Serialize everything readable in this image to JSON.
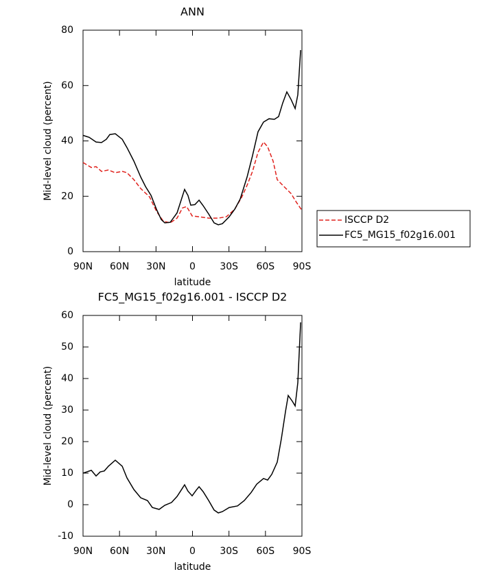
{
  "chart_data": [
    {
      "type": "line",
      "title": "ANN",
      "xlabel": "latitude",
      "ylabel": "Mid-level cloud (percent)",
      "xlim": [
        90,
        -90
      ],
      "ylim": [
        0,
        80
      ],
      "xticks": [
        {
          "value": 90,
          "label": "90N"
        },
        {
          "value": 60,
          "label": "60N"
        },
        {
          "value": 30,
          "label": "30N"
        },
        0,
        {
          "value": -30,
          "label": "30S"
        },
        {
          "value": -60,
          "label": "60S"
        },
        {
          "value": -90,
          "label": "90S"
        }
      ],
      "yticks": [
        0,
        20,
        40,
        60,
        80
      ],
      "legend": "right",
      "series": [
        {
          "name": "ISCCP D2",
          "color": "#e0201b",
          "dash": true,
          "x": [
            90,
            83.2,
            79.3,
            74.8,
            69.1,
            63.5,
            57.8,
            53.9,
            48.2,
            42.6,
            35.3,
            29.6,
            24,
            18.3,
            12.7,
            8.2,
            4.8,
            0.3,
            -5.4,
            -13.3,
            -21.2,
            -27.9,
            -34.7,
            -40.4,
            -44.9,
            -49.4,
            -53.9,
            -58.4,
            -61.8,
            -66.3,
            -69.7,
            -75.3,
            -81,
            -85.5,
            -90
          ],
          "values": [
            32.2,
            30.4,
            30.7,
            29,
            29.5,
            28.5,
            29,
            28.5,
            26,
            22.8,
            19.8,
            14.6,
            11,
            10.4,
            12.1,
            15.8,
            16.3,
            12.9,
            12.6,
            12.1,
            12.1,
            12.6,
            15.3,
            19.6,
            24,
            29,
            35.9,
            39.6,
            37.9,
            32.7,
            26,
            23.5,
            21,
            17.8,
            14.9
          ]
        },
        {
          "name": "FC5_MG15_f02g16.001",
          "color": "#000000",
          "dash": false,
          "x": [
            90,
            84.9,
            79.3,
            74.8,
            70.8,
            68,
            63.5,
            57.8,
            53.9,
            48.2,
            42.6,
            38.6,
            34.1,
            29.6,
            25.7,
            22.8,
            18.3,
            12.7,
            9.3,
            6.5,
            3.7,
            1.4,
            -2,
            -5.4,
            -8.8,
            -13.3,
            -17.8,
            -21.2,
            -24.6,
            -30.2,
            -34.7,
            -39.2,
            -44.9,
            -49.4,
            -53.9,
            -58.4,
            -62.9,
            -67.4,
            -70.8,
            -74.2,
            -77.6,
            -81,
            -84.4,
            -86.6,
            -88.9
          ],
          "values": [
            42,
            41.3,
            39.6,
            39.4,
            40.6,
            42.3,
            42.6,
            40.6,
            37.6,
            32.7,
            27,
            23.5,
            20.3,
            15.3,
            11.6,
            10.4,
            10.6,
            14,
            18.6,
            22.5,
            20.3,
            16.8,
            17,
            18.6,
            16.6,
            13.6,
            10.4,
            9.7,
            10.1,
            12.6,
            15.3,
            19,
            27,
            34.7,
            43.3,
            46.8,
            48,
            47.8,
            48.8,
            53.7,
            57.7,
            55,
            51.7,
            56.7,
            72.8
          ]
        }
      ]
    },
    {
      "type": "line",
      "title": "FC5_MG15_f02g16.001 - ISCCP D2",
      "xlabel": "latitude",
      "ylabel": "Mid-level cloud (percent)",
      "xlim": [
        90,
        -90
      ],
      "ylim": [
        -10,
        60
      ],
      "xticks": [
        {
          "value": 90,
          "label": "90N"
        },
        {
          "value": 60,
          "label": "60N"
        },
        {
          "value": 30,
          "label": "30N"
        },
        0,
        {
          "value": -30,
          "label": "30S"
        },
        {
          "value": -60,
          "label": "60S"
        },
        {
          "value": -90,
          "label": "90S"
        }
      ],
      "yticks": [
        -10,
        0,
        10,
        20,
        30,
        40,
        50,
        60
      ],
      "series": [
        {
          "color": "#000000",
          "dash": false,
          "x": [
            90,
            83.2,
            79.3,
            75.9,
            72.5,
            69.1,
            63.5,
            57.8,
            53.9,
            48.2,
            42.6,
            37,
            33,
            27.4,
            22.8,
            17.2,
            12.7,
            9.3,
            6.5,
            3.7,
            0.3,
            -3.1,
            -5.4,
            -8.8,
            -13.3,
            -17.8,
            -21.2,
            -24.6,
            -30.2,
            -37,
            -42.6,
            -48.3,
            -52.8,
            -58.4,
            -61.8,
            -65.2,
            -69.7,
            -73.1,
            -76.5,
            -78.7,
            -82.1,
            -84.4,
            -86.6,
            -88.9
          ],
          "values": [
            10,
            10.9,
            9.1,
            10.4,
            10.7,
            12.2,
            14.1,
            12.2,
            8.5,
            4.8,
            2.2,
            1.3,
            -0.9,
            -1.5,
            -0.2,
            0.7,
            2.6,
            4.6,
            6.3,
            4.3,
            2.8,
            4.6,
            5.7,
            4.1,
            1.3,
            -1.7,
            -2.6,
            -2.2,
            -0.9,
            -0.4,
            1.3,
            3.9,
            6.5,
            8.3,
            7.8,
            9.6,
            13.5,
            20.9,
            29.6,
            34.6,
            32.8,
            31.3,
            38.7,
            57.8
          ]
        }
      ]
    }
  ]
}
